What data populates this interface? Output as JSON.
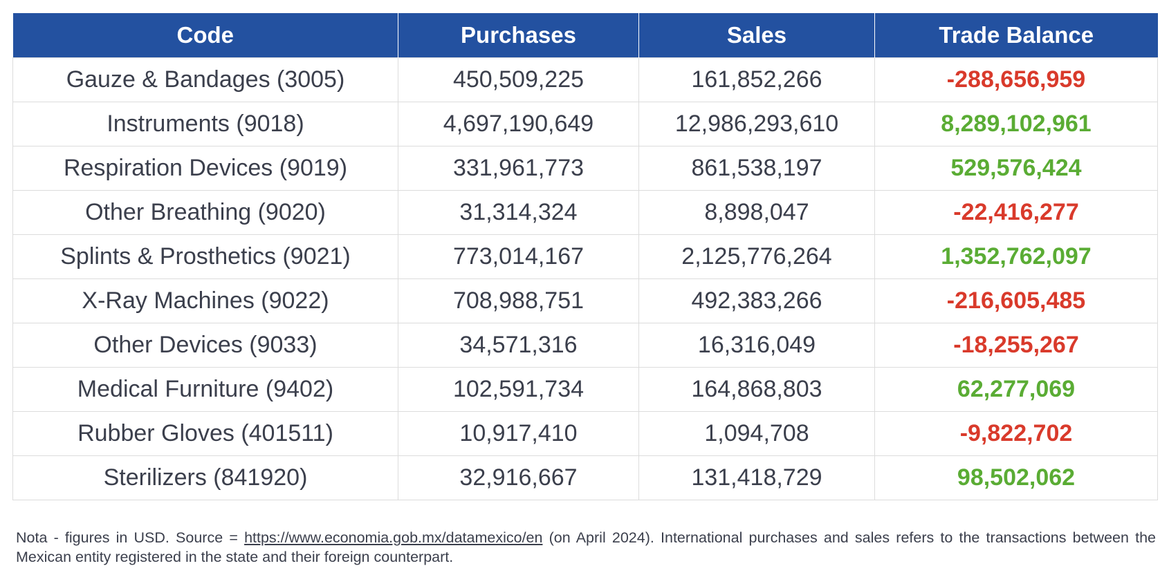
{
  "table": {
    "header": [
      "Code",
      "Purchases",
      "Sales",
      "Trade Balance"
    ],
    "rows": [
      [
        "Gauze & Bandages (3005)",
        "450,509,225",
        "161,852,266",
        "-288,656,959"
      ],
      [
        "Instruments (9018)",
        "4,697,190,649",
        "12,986,293,610",
        "8,289,102,961"
      ],
      [
        "Respiration Devices (9019)",
        "331,961,773",
        "861,538,197",
        "529,576,424"
      ],
      [
        "Other Breathing (9020)",
        "31,314,324",
        "8,898,047",
        "-22,416,277"
      ],
      [
        "Splints & Prosthetics (9021)",
        "773,014,167",
        "2,125,776,264",
        "1,352,762,097"
      ],
      [
        "X-Ray Machines (9022)",
        "708,988,751",
        "492,383,266",
        "-216,605,485"
      ],
      [
        "Other Devices (9033)",
        "34,571,316",
        "16,316,049",
        "-18,255,267"
      ],
      [
        "Medical Furniture (9402)",
        "102,591,734",
        "164,868,803",
        "62,277,069"
      ],
      [
        "Rubber Gloves (401511)",
        "10,917,410",
        "1,094,708",
        "-9,822,702"
      ],
      [
        "Sterilizers (841920)",
        "32,916,667",
        "131,418,729",
        "98,502,062"
      ]
    ]
  },
  "note": {
    "prefix": "Nota - figures in USD. Source = ",
    "link": "https://www.economia.gob.mx/datamexico/en",
    "suffix": " (on April 2024). International purchases and sales refers to the transactions between the Mexican entity registered in the state and their foreign counterpart."
  }
}
